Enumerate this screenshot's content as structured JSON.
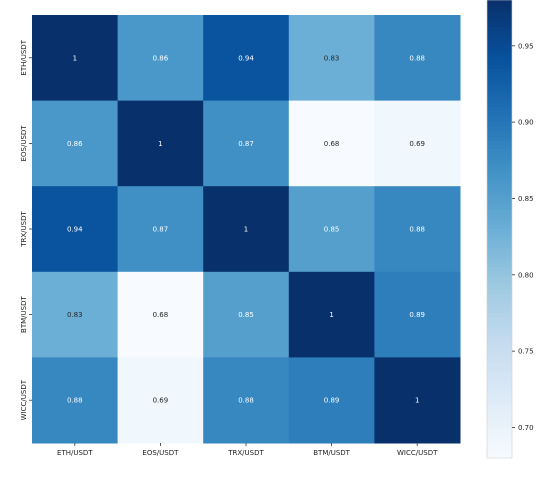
{
  "chart_data": {
    "type": "heatmap",
    "x_labels": [
      "ETH/USDT",
      "EOS/USDT",
      "TRX/USDT",
      "BTM/USDT",
      "WICC/USDT"
    ],
    "y_labels": [
      "ETH/USDT",
      "EOS/USDT",
      "TRX/USDT",
      "BTM/USDT",
      "WICC/USDT"
    ],
    "values": [
      [
        1,
        0.86,
        0.94,
        0.83,
        0.88
      ],
      [
        0.86,
        1,
        0.87,
        0.68,
        0.69
      ],
      [
        0.94,
        0.87,
        1,
        0.85,
        0.88
      ],
      [
        0.83,
        0.68,
        0.85,
        1,
        0.89
      ],
      [
        0.88,
        0.69,
        0.88,
        0.89,
        1
      ]
    ],
    "value_labels": [
      [
        "1",
        "0.86",
        "0.94",
        "0.83",
        "0.88"
      ],
      [
        "0.86",
        "1",
        "0.87",
        "0.68",
        "0.69"
      ],
      [
        "0.94",
        "0.87",
        "1",
        "0.85",
        "0.88"
      ],
      [
        "0.83",
        "0.68",
        "0.85",
        "1",
        "0.89"
      ],
      [
        "0.88",
        "0.69",
        "0.88",
        "0.89",
        "1"
      ]
    ],
    "colorbar": {
      "range": [
        0.68,
        0.98
      ],
      "ticks": [
        "0.70",
        "0.75",
        "0.80",
        "0.85",
        "0.90",
        "0.95"
      ],
      "tick_values": [
        0.7,
        0.75,
        0.8,
        0.85,
        0.9,
        0.95
      ]
    },
    "colormap": "Blues",
    "low_color": "#f7fbff",
    "high_color": "#08306b"
  }
}
